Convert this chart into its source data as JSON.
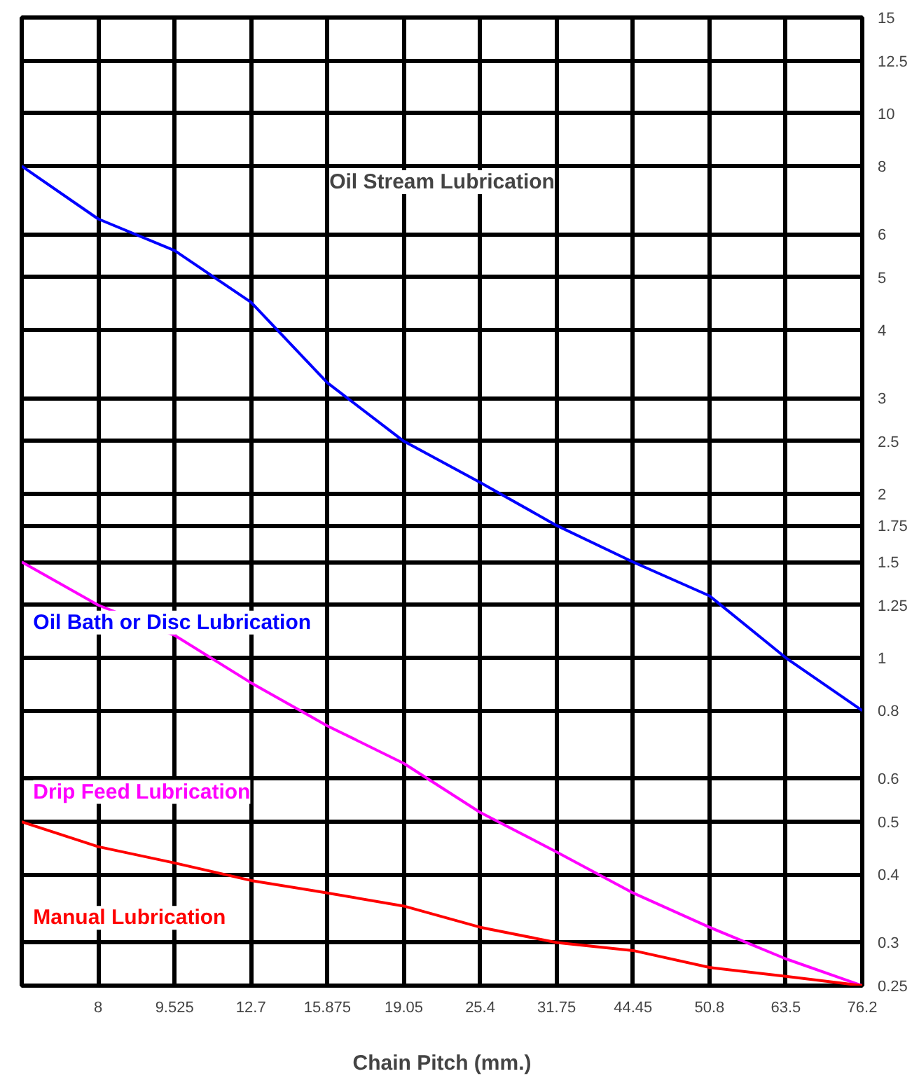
{
  "chart_data": {
    "type": "line",
    "xlabel": "Chain Pitch (mm.)",
    "categories": [
      null,
      "8",
      "9.525",
      "12.7",
      "15.875",
      "19.05",
      "25.4",
      "31.75",
      "44.45",
      "50.8",
      "63.5",
      "76.2"
    ],
    "ylim": [
      0.25,
      15
    ],
    "yticks": [
      0.25,
      0.3,
      0.4,
      0.5,
      0.6,
      0.8,
      1,
      1.25,
      1.5,
      1.75,
      2,
      2.5,
      3,
      4,
      5,
      6,
      8,
      10,
      12.5,
      15
    ],
    "log": "y",
    "grid": true,
    "legend": false,
    "line_style": "solid",
    "marker": "none",
    "series": [
      {
        "name": "Oil Bath or Disc Lubrication",
        "color": "#0000ff",
        "values": [
          8,
          6.4,
          5.6,
          4.5,
          3.2,
          2.5,
          2.1,
          1.75,
          1.5,
          1.3,
          1.0,
          0.8
        ]
      },
      {
        "name": "Drip Feed Lubrication",
        "color": "#ff00ff",
        "values": [
          1.5,
          1.25,
          1.1,
          0.9,
          0.75,
          0.64,
          0.52,
          0.44,
          0.37,
          0.32,
          0.28,
          0.25
        ]
      },
      {
        "name": "Manual Lubrication",
        "color": "#ff0000",
        "values": [
          0.5,
          0.45,
          0.42,
          0.39,
          0.37,
          0.35,
          0.32,
          0.3,
          0.29,
          0.27,
          0.26,
          0.25
        ]
      }
    ],
    "annotations": [
      "Oil Stream Lubrication"
    ]
  }
}
